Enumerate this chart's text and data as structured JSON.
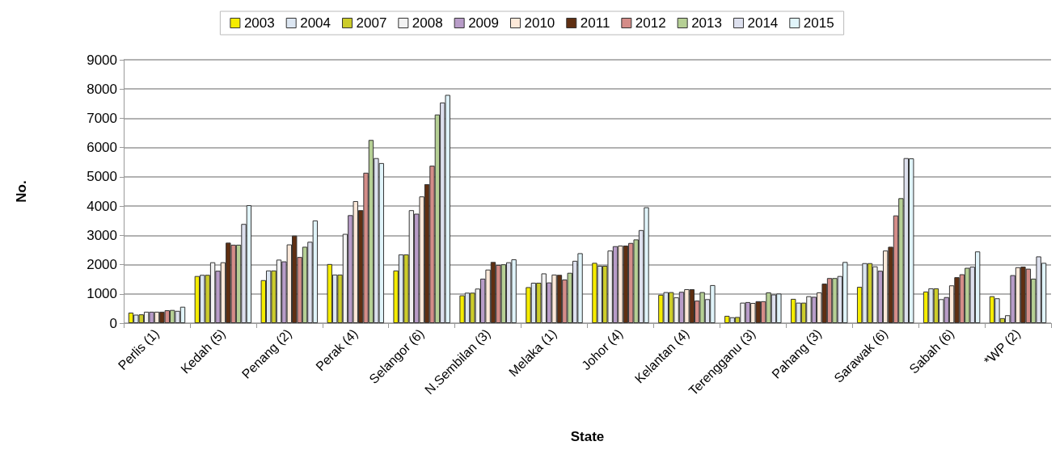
{
  "chart_data": {
    "type": "bar",
    "xlabel": "State",
    "ylabel": "No.",
    "categories": [
      "Perlis (1)",
      "Kedah (5)",
      "Penang (2)",
      "Perak (4)",
      "Selangor (6)",
      "N.Sembilan (3)",
      "Melaka (1)",
      "Johor (4)",
      "Kelantan (4)",
      "Terengganu (3)",
      "Pahang (3)",
      "Sarawak (6)",
      "Sabah (6)",
      "*WP (2)"
    ],
    "ylim": [
      0,
      9000
    ],
    "yticks": [
      0,
      1000,
      2000,
      3000,
      4000,
      5000,
      6000,
      7000,
      8000,
      9000
    ],
    "grid": "y",
    "legend": "top",
    "series": [
      {
        "name": "2003",
        "color": "#f5ec00",
        "values": [
          360,
          1610,
          1470,
          2020,
          1800,
          950,
          1230,
          2060,
          970,
          250,
          830,
          1240,
          1080,
          920
        ]
      },
      {
        "name": "2004",
        "color": "#dce6f2",
        "values": [
          290,
          1650,
          1800,
          1660,
          2350,
          1040,
          1380,
          1960,
          1060,
          200,
          700,
          2050,
          1190,
          850
        ]
      },
      {
        "name": "2007",
        "color": "#cccc2a",
        "values": [
          300,
          1650,
          1800,
          1660,
          2350,
          1040,
          1380,
          1960,
          1060,
          210,
          700,
          2050,
          1190,
          170
        ]
      },
      {
        "name": "2008",
        "color": "#f2f2f2",
        "values": [
          390,
          2080,
          2170,
          3050,
          3860,
          1180,
          1700,
          2480,
          880,
          700,
          920,
          1940,
          820,
          270
        ]
      },
      {
        "name": "2009",
        "color": "#b89cc8",
        "values": [
          390,
          1790,
          2110,
          3690,
          3740,
          1520,
          1390,
          2630,
          1070,
          720,
          900,
          1790,
          890,
          1640
        ]
      },
      {
        "name": "2010",
        "color": "#fde9d9",
        "values": [
          390,
          2080,
          2690,
          4170,
          4330,
          1830,
          1660,
          2650,
          1160,
          690,
          1050,
          2480,
          1290,
          1910
        ]
      },
      {
        "name": "2011",
        "color": "#5f2f12",
        "values": [
          390,
          2750,
          2990,
          3860,
          4750,
          2090,
          1650,
          2650,
          1160,
          750,
          1350,
          2610,
          1570,
          1930
        ]
      },
      {
        "name": "2012",
        "color": "#d48c88",
        "values": [
          440,
          2680,
          2260,
          5140,
          5380,
          1990,
          1490,
          2740,
          770,
          750,
          1540,
          3680,
          1670,
          1860
        ]
      },
      {
        "name": "2013",
        "color": "#b5cf94",
        "values": [
          450,
          2680,
          2610,
          6260,
          7130,
          2010,
          1720,
          2860,
          1060,
          1050,
          1540,
          4270,
          1890,
          1520
        ]
      },
      {
        "name": "2014",
        "color": "#dde0ee",
        "values": [
          420,
          3390,
          2780,
          5640,
          7540,
          2080,
          2130,
          3180,
          820,
          980,
          1610,
          5640,
          1930,
          2280
        ]
      },
      {
        "name": "2015",
        "color": "#e0f4fa",
        "values": [
          560,
          4030,
          3510,
          5470,
          7800,
          2180,
          2390,
          3960,
          1300,
          1010,
          2090,
          5630,
          2450,
          2060
        ]
      }
    ]
  }
}
